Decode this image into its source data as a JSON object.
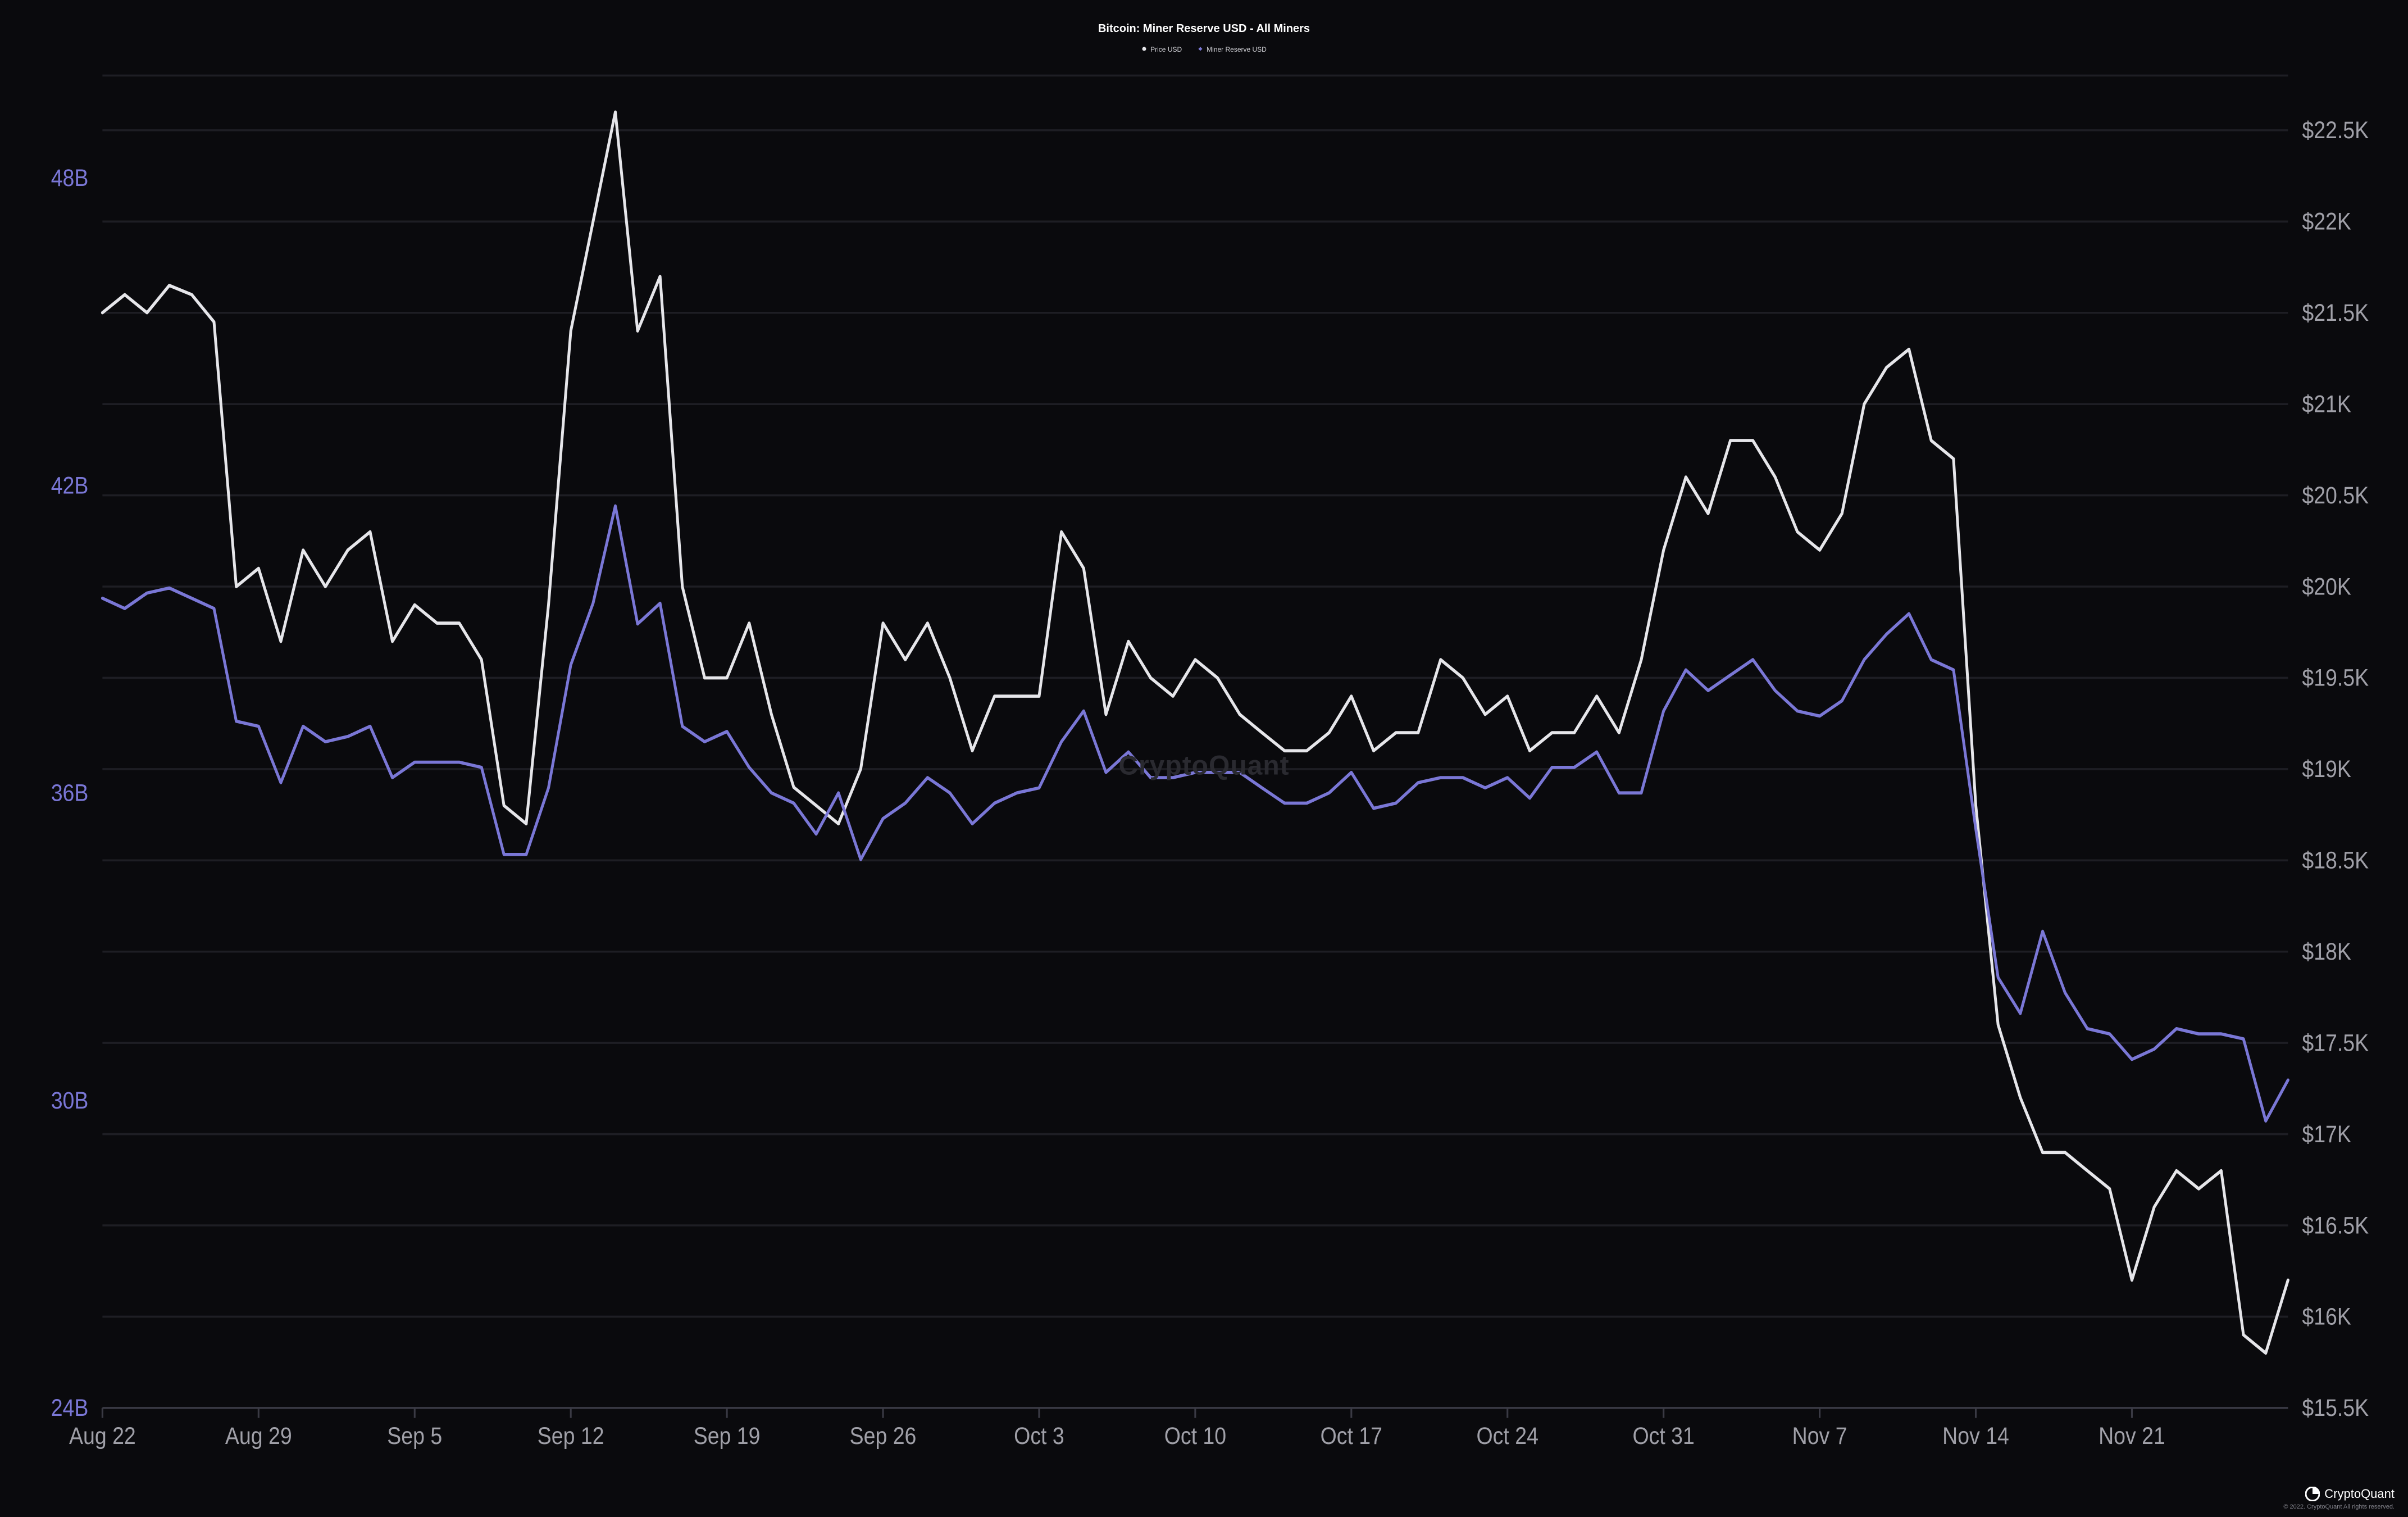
{
  "chart": {
    "title": "Bitcoin: Miner Reserve USD - All Miners",
    "type": "line",
    "background_color": "#0a0a0d",
    "grid_color": "#1e1e24",
    "baseline_color": "#3a3a44",
    "watermark": "CryptoQuant",
    "legend": [
      {
        "label": "Price USD",
        "color": "#e6e6ea",
        "marker": "circle"
      },
      {
        "label": "Miner Reserve USD",
        "color": "#7a77d6",
        "marker": "diamond"
      }
    ],
    "x_axis": {
      "ticks": [
        "Aug 22",
        "Aug 29",
        "Sep 5",
        "Sep 12",
        "Sep 19",
        "Sep 26",
        "Oct 3",
        "Oct 10",
        "Oct 17",
        "Oct 24",
        "Oct 31",
        "Nov 7",
        "Nov 14",
        "Nov 21"
      ],
      "label_color": "#a0a0a8",
      "label_fontsize": 12
    },
    "y_axis_left": {
      "ticks": [
        {
          "v": 24,
          "label": "24B"
        },
        {
          "v": 30,
          "label": "30B"
        },
        {
          "v": 36,
          "label": "36B"
        },
        {
          "v": 42,
          "label": "42B"
        },
        {
          "v": 48,
          "label": "48B"
        }
      ],
      "min": 24,
      "max": 50,
      "label_color": "#7a77d6",
      "label_fontsize": 12
    },
    "y_axis_right": {
      "ticks": [
        {
          "v": 15500,
          "label": "$15.5K"
        },
        {
          "v": 16000,
          "label": "$16K"
        },
        {
          "v": 16500,
          "label": "$16.5K"
        },
        {
          "v": 17000,
          "label": "$17K"
        },
        {
          "v": 17500,
          "label": "$17.5K"
        },
        {
          "v": 18000,
          "label": "$18K"
        },
        {
          "v": 18500,
          "label": "$18.5K"
        },
        {
          "v": 19000,
          "label": "$19K"
        },
        {
          "v": 19500,
          "label": "$19.5K"
        },
        {
          "v": 20000,
          "label": "$20K"
        },
        {
          "v": 20500,
          "label": "$20.5K"
        },
        {
          "v": 21000,
          "label": "$21K"
        },
        {
          "v": 21500,
          "label": "$21.5K"
        },
        {
          "v": 22000,
          "label": "$22K"
        },
        {
          "v": 22500,
          "label": "$22.5K"
        }
      ],
      "min": 15500,
      "max": 22800,
      "label_color": "#a0a0a8",
      "label_fontsize": 12
    },
    "series": {
      "price_usd": {
        "color": "#e6e6ea",
        "line_width": 1.6,
        "data": [
          21500,
          21600,
          21500,
          21650,
          21600,
          21450,
          20000,
          20100,
          19700,
          20200,
          20000,
          20200,
          20300,
          19700,
          19900,
          19800,
          19800,
          19600,
          18800,
          18700,
          19900,
          21400,
          22000,
          22600,
          21400,
          21700,
          20000,
          19500,
          19500,
          19800,
          19300,
          18900,
          18800,
          18700,
          19000,
          19800,
          19600,
          19800,
          19500,
          19100,
          19400,
          19400,
          19400,
          20300,
          20100,
          19300,
          19700,
          19500,
          19400,
          19600,
          19500,
          19300,
          19200,
          19100,
          19100,
          19200,
          19400,
          19100,
          19200,
          19200,
          19600,
          19500,
          19300,
          19400,
          19100,
          19200,
          19200,
          19400,
          19200,
          19600,
          20200,
          20600,
          20400,
          20800,
          20800,
          20600,
          20300,
          20200,
          20400,
          21000,
          21200,
          21300,
          20800,
          20700,
          18800,
          17600,
          17200,
          16900,
          16900,
          16800,
          16700,
          16200,
          16600,
          16800,
          16700,
          16800,
          15900,
          15800,
          16200
        ]
      },
      "miner_reserve_usd": {
        "color": "#7a77d6",
        "line_width": 1.8,
        "data": [
          39.8,
          39.6,
          39.9,
          40.0,
          39.8,
          39.6,
          37.4,
          37.3,
          36.2,
          37.3,
          37.0,
          37.1,
          37.3,
          36.3,
          36.6,
          36.6,
          36.6,
          36.5,
          34.8,
          34.8,
          36.1,
          38.5,
          39.7,
          41.6,
          39.3,
          39.7,
          37.3,
          37.0,
          37.2,
          36.5,
          36.0,
          35.8,
          35.2,
          36.0,
          34.7,
          35.5,
          35.8,
          36.3,
          36.0,
          35.4,
          35.8,
          36.0,
          36.1,
          37.0,
          37.6,
          36.4,
          36.8,
          36.3,
          36.3,
          36.4,
          36.4,
          36.4,
          36.1,
          35.8,
          35.8,
          36.0,
          36.4,
          35.7,
          35.8,
          36.2,
          36.3,
          36.3,
          36.1,
          36.3,
          35.9,
          36.5,
          36.5,
          36.8,
          36.0,
          36.0,
          37.6,
          38.4,
          38.0,
          38.3,
          38.6,
          38.0,
          37.6,
          37.5,
          37.8,
          38.6,
          39.1,
          39.5,
          38.6,
          38.4,
          35.3,
          32.4,
          31.7,
          33.3,
          32.1,
          31.4,
          31.3,
          30.8,
          31.0,
          31.4,
          31.3,
          31.3,
          31.2,
          29.6,
          30.4
        ]
      }
    }
  },
  "footer": {
    "logo_text": "CryptoQuant",
    "copyright": "© 2022. CryptoQuant All rights reserved."
  }
}
